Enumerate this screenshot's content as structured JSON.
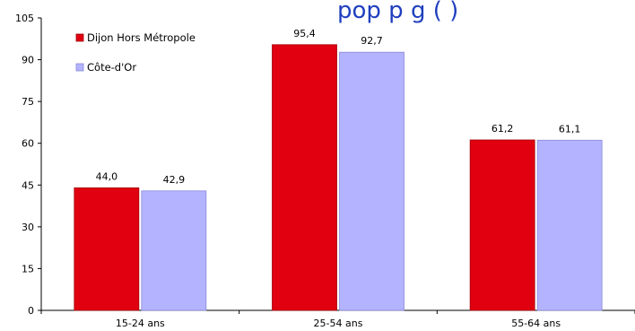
{
  "title_fragment": "pop    p    g (  )",
  "chart_data": {
    "type": "bar",
    "categories": [
      "15-24 ans",
      "25-54 ans",
      "55-64 ans"
    ],
    "series": [
      {
        "name": "Dijon Hors Métropole",
        "values": [
          44.0,
          95.4,
          61.2
        ],
        "labels": [
          "44,0",
          "95,4",
          "61,2"
        ],
        "color": "#e0000f"
      },
      {
        "name": "Côte-d'Or",
        "values": [
          42.9,
          92.7,
          61.1
        ],
        "labels": [
          "42,9",
          "92,7",
          "61,1"
        ],
        "color": "#b3b3ff"
      }
    ],
    "ylim": [
      0,
      105
    ],
    "yticks": [
      0,
      15,
      30,
      45,
      60,
      75,
      90,
      105
    ],
    "grid": false,
    "legend": "top-left"
  }
}
